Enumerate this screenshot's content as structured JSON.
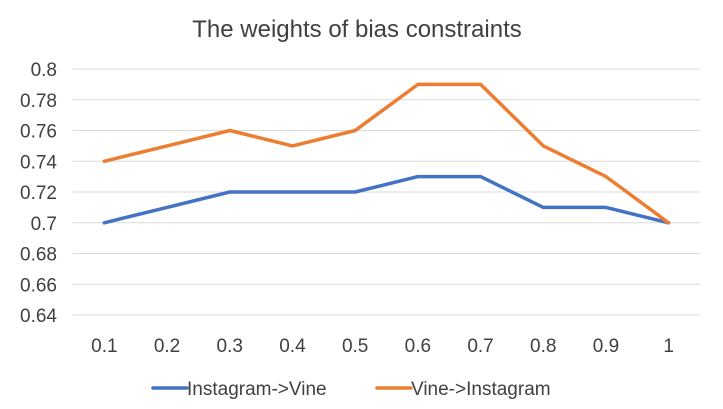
{
  "chart_data": {
    "type": "line",
    "title": "The weights of bias constraints",
    "xlabel": "",
    "ylabel": "",
    "categories": [
      "0.1",
      "0.2",
      "0.3",
      "0.4",
      "0.5",
      "0.6",
      "0.7",
      "0.8",
      "0.9",
      "1"
    ],
    "ylim": [
      0.64,
      0.8
    ],
    "yticks": [
      "0.64",
      "0.66",
      "0.68",
      "0.7",
      "0.72",
      "0.74",
      "0.76",
      "0.78",
      "0.8"
    ],
    "grid": true,
    "legend_position": "bottom",
    "series": [
      {
        "name": "Instagram->Vine",
        "color": "#4472c4",
        "values": [
          0.7,
          0.71,
          0.72,
          0.72,
          0.72,
          0.73,
          0.73,
          0.71,
          0.71,
          0.7
        ]
      },
      {
        "name": "Vine->Instagram",
        "color": "#ed7d31",
        "values": [
          0.74,
          0.75,
          0.76,
          0.75,
          0.76,
          0.79,
          0.79,
          0.75,
          0.73,
          0.7
        ]
      }
    ]
  }
}
